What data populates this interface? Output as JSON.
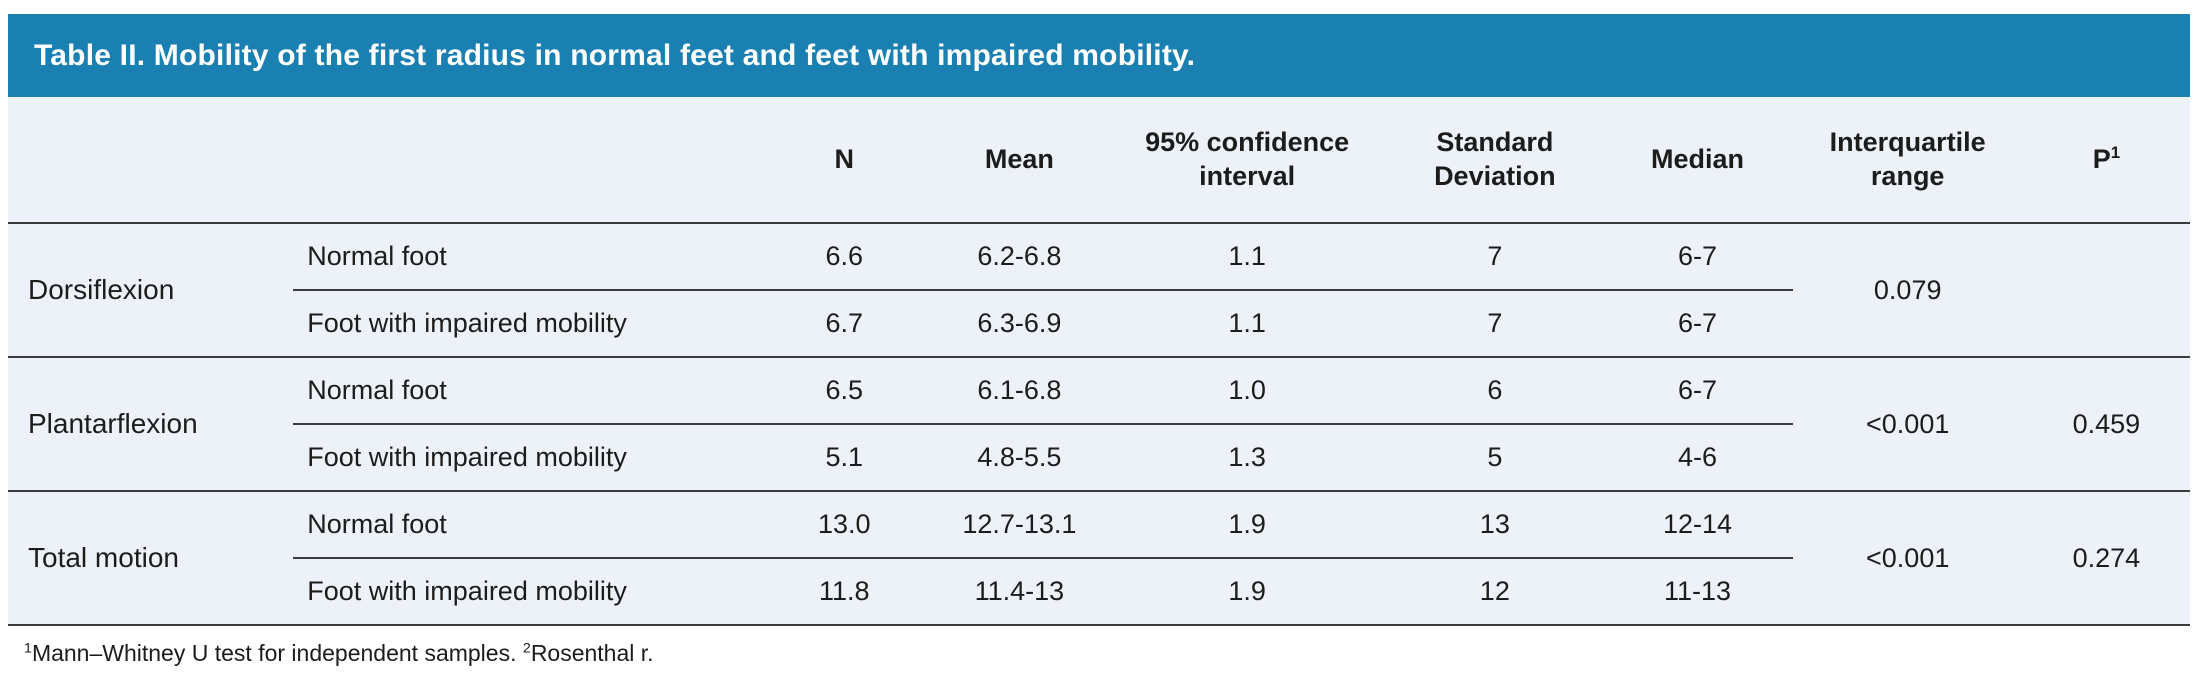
{
  "colors": {
    "accent_teal": "#1a80b1",
    "table_background": "#edf1f8",
    "rule_line": "#3c3c3c",
    "title_text": "#ffffff",
    "body_text": "#1c1c1c"
  },
  "title": "Table II. Mobility of the first radius in normal feet and feet with impaired mobility.",
  "table": {
    "headers": {
      "n": "N",
      "mean": "Mean",
      "ci": "95% confidence interval",
      "sd": "Standard Deviation",
      "median": "Median",
      "iqr": "Interquartile range",
      "p_base": "P",
      "p_sup": "1"
    },
    "groups": [
      {
        "label": "Dorsiflexion",
        "rows": [
          {
            "condition": "Normal foot",
            "n": "6.6",
            "mean": "6.2-6.8",
            "ci": "1.1",
            "sd": "7",
            "median": "6-7"
          },
          {
            "condition": "Foot with impaired mobility",
            "n": "6.7",
            "mean": "6.3-6.9",
            "ci": "1.1",
            "sd": "7",
            "median": "6-7"
          }
        ],
        "iqr": "0.079",
        "p": ""
      },
      {
        "label": "Plantarflexion",
        "rows": [
          {
            "condition": "Normal foot",
            "n": "6.5",
            "mean": "6.1-6.8",
            "ci": "1.0",
            "sd": "6",
            "median": "6-7"
          },
          {
            "condition": "Foot with impaired mobility",
            "n": "5.1",
            "mean": "4.8-5.5",
            "ci": "1.3",
            "sd": "5",
            "median": "4-6"
          }
        ],
        "iqr": "<0.001",
        "p": "0.459"
      },
      {
        "label": "Total motion",
        "rows": [
          {
            "condition": "Normal foot",
            "n": "13.0",
            "mean": "12.7-13.1",
            "ci": "1.9",
            "sd": "13",
            "median": "12-14"
          },
          {
            "condition": "Foot with impaired mobility",
            "n": "11.8",
            "mean": "11.4-13",
            "ci": "1.9",
            "sd": "12",
            "median": "11-13"
          }
        ],
        "iqr": "<0.001",
        "p": "0.274"
      }
    ]
  },
  "footnote": {
    "sup1": "1",
    "text1": "Mann–Whitney U test for independent samples. ",
    "sup2": "2",
    "text2": "Rosenthal r."
  }
}
